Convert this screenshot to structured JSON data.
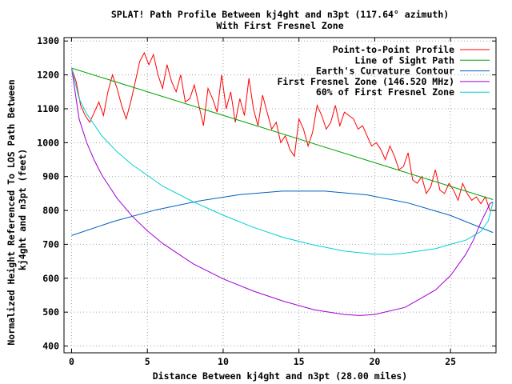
{
  "chart_data": {
    "type": "line",
    "title": "SPLAT! Path Profile Between kj4ght and n3pt (117.64° azimuth)",
    "subtitle": "With First Fresnel Zone",
    "xlabel": "Distance Between kj4ght and n3pt (28.00 miles)",
    "ylabel": "Normalized Height Referenced To LOS Path Between kj4ght and n3pt (feet)",
    "xlim": [
      -0.5,
      28
    ],
    "ylim": [
      380,
      1310
    ],
    "xticks": [
      0,
      5,
      10,
      15,
      20,
      25
    ],
    "xtick_labels": [
      "0",
      "5",
      "10",
      "15",
      "20",
      "25"
    ],
    "yticks": [
      400,
      500,
      600,
      700,
      800,
      900,
      1000,
      1100,
      1200,
      1300
    ],
    "ytick_labels": [
      "400",
      "500",
      "600",
      "700",
      "800",
      "900",
      "1000",
      "1100",
      "1200",
      "1300"
    ],
    "grid": true,
    "legend_position": "top-right",
    "series": [
      {
        "name": "Point-to-Point Profile",
        "color": "#ff0000",
        "x": [
          0,
          0.3,
          0.6,
          0.9,
          1.2,
          1.5,
          1.8,
          2.1,
          2.4,
          2.7,
          3.0,
          3.3,
          3.6,
          3.9,
          4.2,
          4.5,
          4.8,
          5.1,
          5.4,
          5.7,
          6.0,
          6.3,
          6.6,
          6.9,
          7.2,
          7.5,
          7.8,
          8.1,
          8.4,
          8.7,
          9.0,
          9.3,
          9.6,
          9.9,
          10.2,
          10.5,
          10.8,
          11.1,
          11.4,
          11.7,
          12.0,
          12.3,
          12.6,
          12.9,
          13.2,
          13.5,
          13.8,
          14.1,
          14.4,
          14.7,
          15.0,
          15.3,
          15.6,
          15.9,
          16.2,
          16.5,
          16.8,
          17.1,
          17.4,
          17.7,
          18.0,
          18.3,
          18.6,
          18.9,
          19.2,
          19.5,
          19.8,
          20.1,
          20.4,
          20.7,
          21.0,
          21.3,
          21.6,
          21.9,
          22.2,
          22.5,
          22.8,
          23.1,
          23.4,
          23.7,
          24.0,
          24.3,
          24.6,
          24.9,
          25.2,
          25.5,
          25.8,
          26.1,
          26.4,
          26.7,
          27.0,
          27.3,
          27.6,
          27.8
        ],
        "y": [
          1220,
          1180,
          1110,
          1080,
          1060,
          1090,
          1120,
          1080,
          1150,
          1200,
          1160,
          1110,
          1070,
          1120,
          1180,
          1240,
          1265,
          1230,
          1260,
          1200,
          1160,
          1230,
          1180,
          1150,
          1200,
          1120,
          1130,
          1170,
          1110,
          1050,
          1160,
          1130,
          1090,
          1200,
          1100,
          1150,
          1060,
          1130,
          1080,
          1190,
          1100,
          1050,
          1140,
          1090,
          1040,
          1060,
          1000,
          1020,
          980,
          960,
          1070,
          1040,
          990,
          1030,
          1110,
          1080,
          1040,
          1060,
          1110,
          1050,
          1090,
          1080,
          1070,
          1040,
          1050,
          1020,
          990,
          1000,
          980,
          950,
          990,
          960,
          920,
          930,
          970,
          890,
          880,
          900,
          850,
          870,
          920,
          860,
          850,
          880,
          860,
          830,
          880,
          850,
          830,
          840,
          820,
          840,
          800,
          800
        ]
      },
      {
        "name": "Line of Sight Path",
        "color": "#00a000",
        "x": [
          0,
          27.8
        ],
        "y": [
          1220,
          832
        ]
      },
      {
        "name": "Earth's Curvature Contour",
        "color": "#0060c0",
        "x": [
          0,
          2.8,
          5.6,
          8.4,
          11.1,
          13.9,
          16.7,
          19.5,
          22.2,
          25.0,
          27.8
        ],
        "y": [
          726,
          768,
          802,
          828,
          847,
          857,
          857,
          846,
          822,
          785,
          735
        ]
      },
      {
        "name": "First Fresnel Zone (146.520 MHz)",
        "color": "#a000d0",
        "x": [
          0,
          0.5,
          1.0,
          1.5,
          2.0,
          3.0,
          4.0,
          5.0,
          6.0,
          8.0,
          10.0,
          12.0,
          14.0,
          16.0,
          18.0,
          19.0,
          20.0,
          22.0,
          24.0,
          25.0,
          26.0,
          26.5,
          27.0,
          27.3,
          27.6,
          27.8
        ],
        "y": [
          1220,
          1070,
          1000,
          948,
          904,
          836,
          783,
          740,
          703,
          643,
          598,
          562,
          532,
          507,
          493,
          490,
          493,
          514,
          565,
          608,
          670,
          712,
          765,
          792,
          820,
          825
        ]
      },
      {
        "name": "60% of First Fresnel Zone",
        "color": "#00d0d0",
        "x": [
          0,
          0.5,
          1.0,
          2.0,
          3.0,
          4.0,
          6.0,
          8.0,
          10.0,
          12.0,
          14.0,
          16.0,
          18.0,
          20.0,
          21.0,
          22.0,
          24.0,
          25.0,
          26.0,
          27.0,
          27.5,
          27.8
        ],
        "y": [
          1220,
          1130,
          1085,
          1020,
          973,
          935,
          872,
          826,
          786,
          750,
          720,
          698,
          680,
          671,
          670,
          674,
          687,
          700,
          712,
          738,
          770,
          825
        ]
      }
    ]
  }
}
